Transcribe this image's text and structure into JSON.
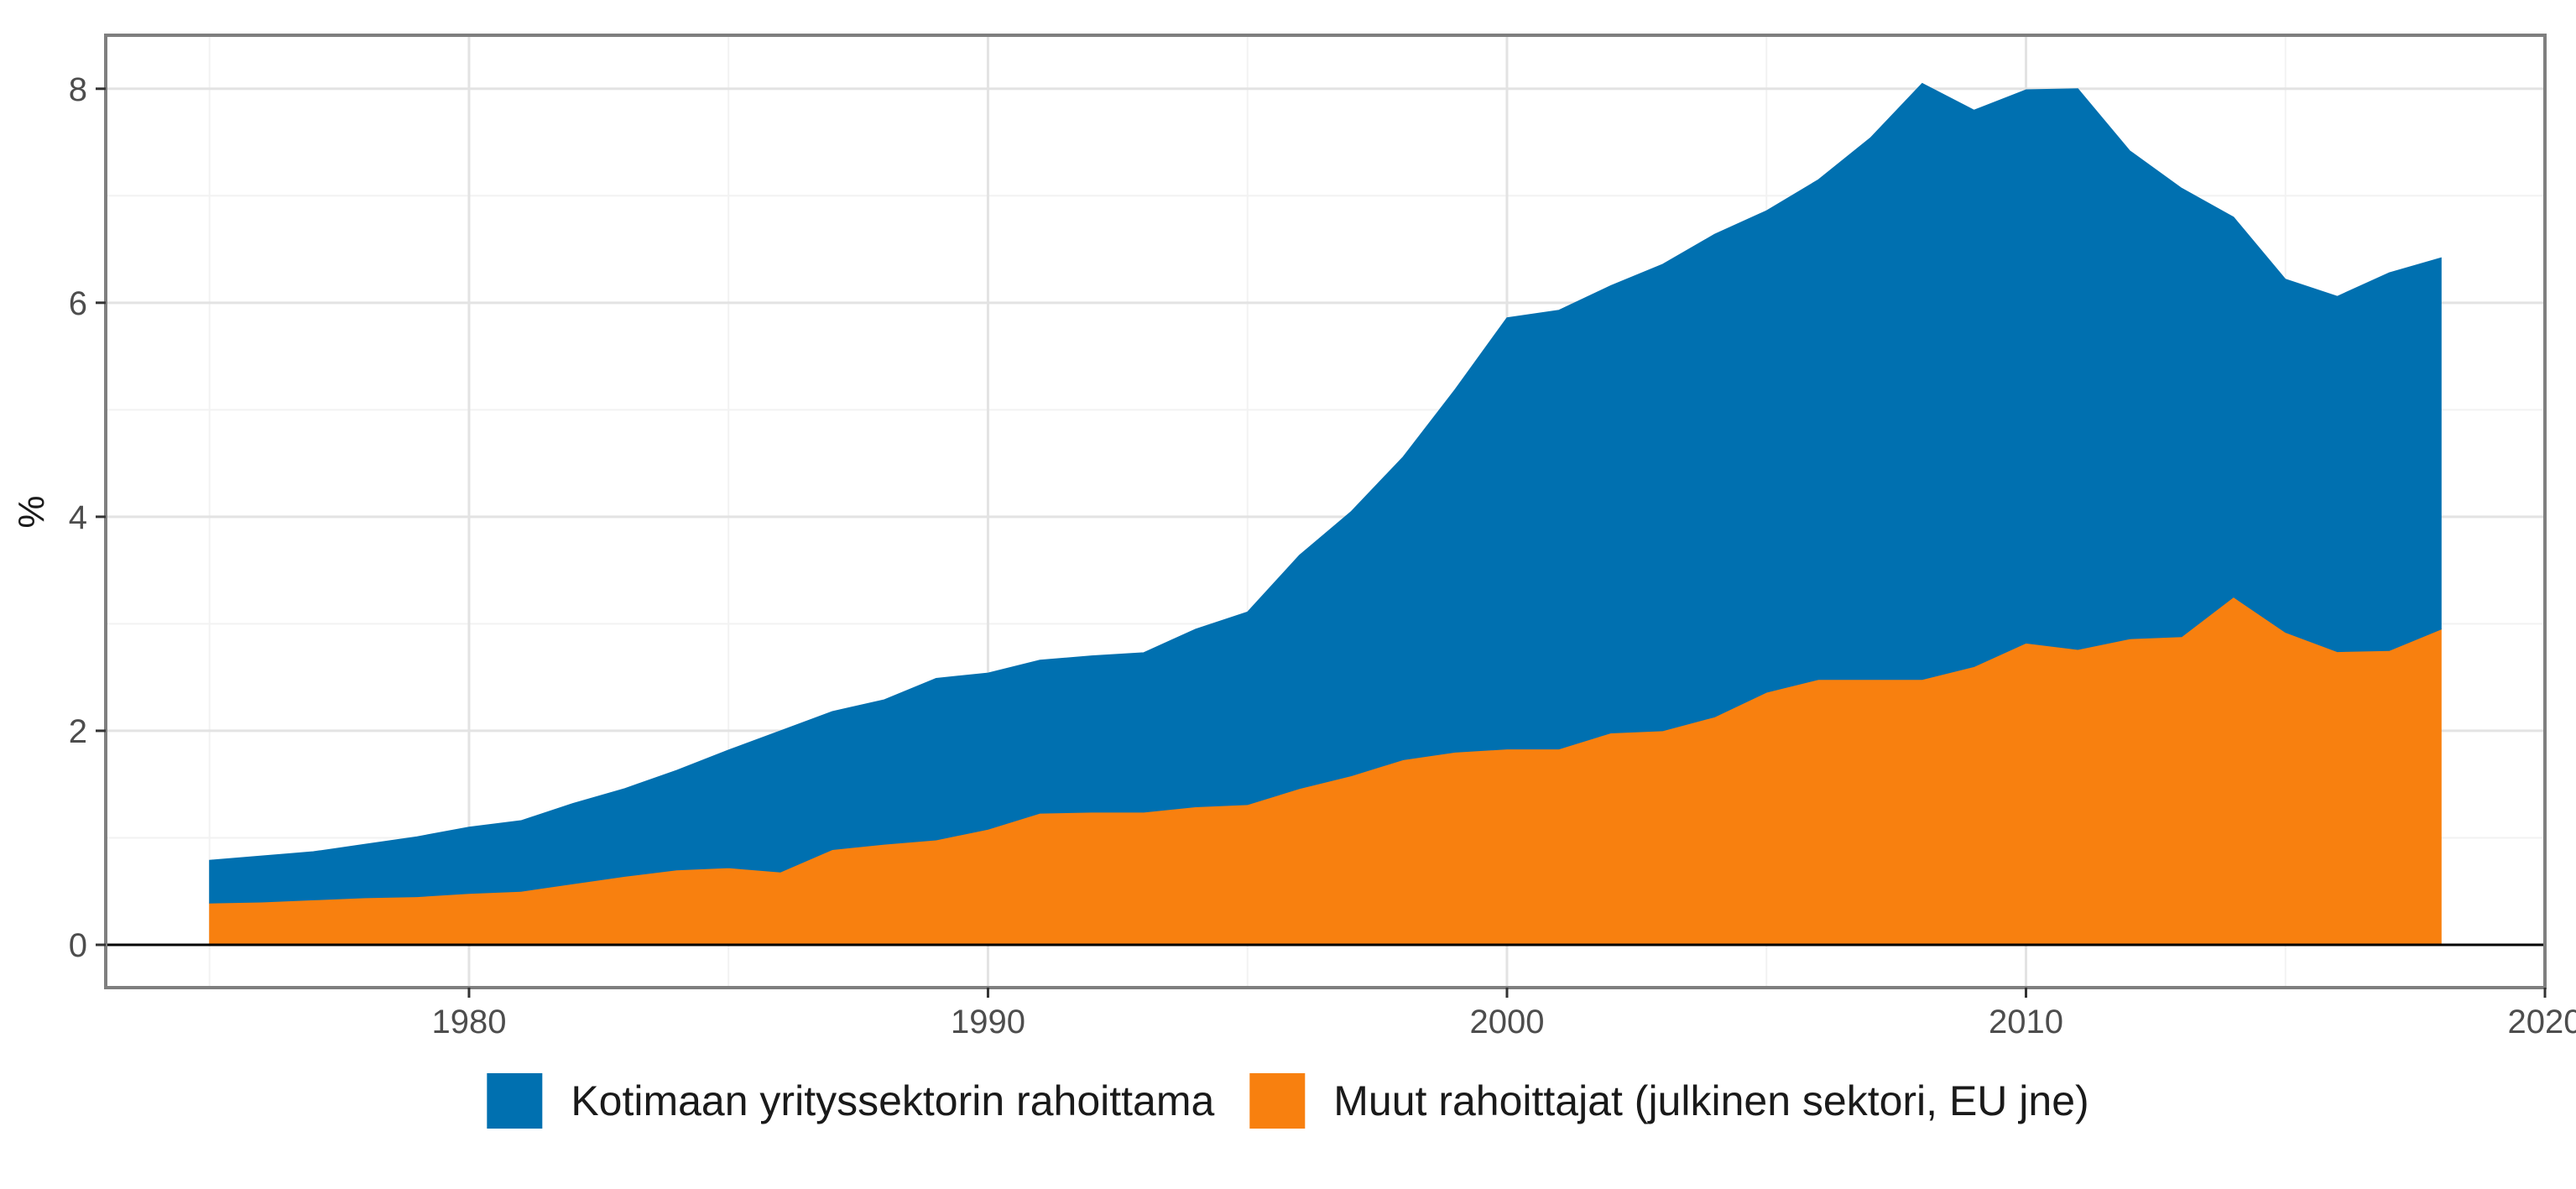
{
  "chart_data": {
    "type": "area",
    "stacked": true,
    "xlabel": "",
    "ylabel": "%",
    "xlim": [
      1973,
      2020
    ],
    "ylim": [
      -0.4,
      8.5
    ],
    "x_ticks": [
      1980,
      1990,
      2000,
      2010,
      2020
    ],
    "y_ticks": [
      0,
      2,
      4,
      6,
      8
    ],
    "grid": true,
    "legend_position": "bottom",
    "x": [
      1975,
      1976,
      1977,
      1978,
      1979,
      1980,
      1981,
      1982,
      1983,
      1984,
      1985,
      1986,
      1987,
      1988,
      1989,
      1990,
      1991,
      1992,
      1993,
      1994,
      1995,
      1996,
      1997,
      1998,
      1999,
      2000,
      2001,
      2002,
      2003,
      2004,
      2005,
      2006,
      2007,
      2008,
      2009,
      2010,
      2011,
      2012,
      2013,
      2014,
      2015,
      2016,
      2017,
      2018
    ],
    "series": [
      {
        "name": "Muut rahoittajat (julkinen sektori, EU jne)",
        "color": "#F8800F",
        "values": [
          0.39,
          0.4,
          0.42,
          0.44,
          0.45,
          0.48,
          0.5,
          0.57,
          0.64,
          0.7,
          0.72,
          0.68,
          0.89,
          0.94,
          0.98,
          1.08,
          1.23,
          1.24,
          1.24,
          1.29,
          1.31,
          1.46,
          1.58,
          1.73,
          1.8,
          1.83,
          1.83,
          1.98,
          2.0,
          2.13,
          2.36,
          2.48,
          2.48,
          2.48,
          2.6,
          2.82,
          2.76,
          2.86,
          2.88,
          3.25,
          2.92,
          2.74,
          2.75,
          2.95
        ]
      },
      {
        "name": "Kotimaan yrityssektorin rahoittama",
        "color": "#0070B0",
        "values": [
          0.4,
          0.43,
          0.45,
          0.5,
          0.56,
          0.62,
          0.66,
          0.75,
          0.82,
          0.93,
          1.1,
          1.32,
          1.29,
          1.35,
          1.51,
          1.46,
          1.43,
          1.46,
          1.49,
          1.66,
          1.8,
          2.18,
          2.47,
          2.83,
          3.39,
          4.03,
          4.1,
          4.18,
          4.36,
          4.51,
          4.5,
          4.67,
          5.06,
          5.57,
          5.2,
          5.17,
          5.24,
          4.56,
          4.19,
          3.55,
          3.3,
          3.32,
          3.53,
          3.47
        ]
      }
    ],
    "legend_order": [
      1,
      0
    ]
  }
}
